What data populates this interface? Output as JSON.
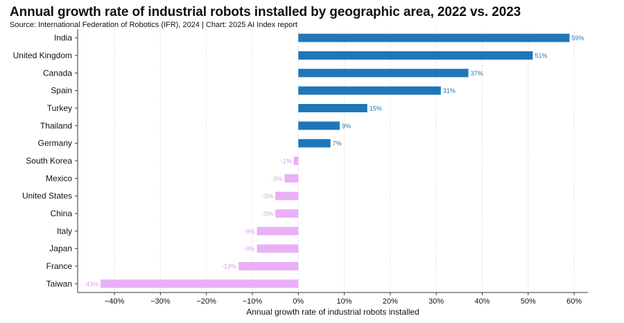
{
  "chart_data": {
    "type": "bar",
    "orientation": "horizontal",
    "title": "Annual growth rate of industrial robots installed by geographic area, 2022 vs. 2023",
    "subtitle": "Source: International Federation of Robotics (IFR), 2024 | Chart: 2025 AI Index report",
    "categories": [
      "India",
      "United Kingdom",
      "Canada",
      "Spain",
      "Turkey",
      "Thailand",
      "Germany",
      "South Korea",
      "Mexico",
      "United States",
      "China",
      "Italy",
      "Japan",
      "France",
      "Taiwan"
    ],
    "values": [
      59,
      51,
      37,
      31,
      15,
      9,
      7,
      -1,
      -3,
      -5,
      -5,
      -9,
      -9,
      -13,
      -43
    ],
    "value_labels": [
      "59%",
      "51%",
      "37%",
      "31%",
      "15%",
      "9%",
      "7%",
      "-1%",
      "-3%",
      "-5%",
      "-5%",
      "-9%",
      "-9%",
      "-13%",
      "-43%"
    ],
    "xlabel": "Annual growth rate of industrial robots installed",
    "ylabel": "",
    "xlim": [
      -48,
      63
    ],
    "x_ticks": [
      -40,
      -30,
      -20,
      -10,
      0,
      10,
      20,
      30,
      40,
      50,
      60
    ],
    "x_tick_labels": [
      "−40%",
      "−30%",
      "−20%",
      "−10%",
      "0%",
      "10%",
      "20%",
      "30%",
      "40%",
      "50%",
      "60%"
    ],
    "colors": {
      "positive": "#1f77b8",
      "negative": "#eab0f7",
      "negative_label": "#d7a0e6",
      "grid": "#dddddd",
      "axis": "#333333"
    },
    "grid": true
  }
}
